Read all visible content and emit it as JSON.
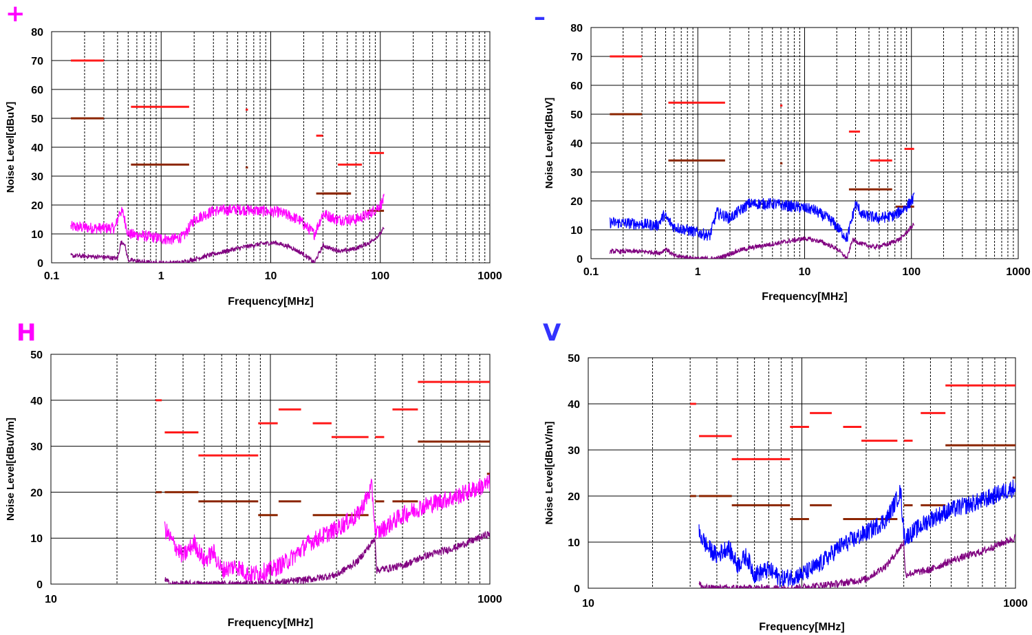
{
  "panel_labels": {
    "plus": "+",
    "minus": "–",
    "h": "H",
    "v": "V"
  },
  "colors": {
    "limit_qp": "#ff1a1a",
    "limit_av": "#8b2500",
    "trace_plus": "#ff00ff",
    "trace_minus": "#0000ff",
    "trace_lower": "#800080",
    "grid": "#000000"
  },
  "chart_data": [
    {
      "id": "plus",
      "type": "line",
      "title": "+",
      "xlabel": "Frequency[MHz]",
      "ylabel": "Noise Level[dBuV]",
      "xscale": "log",
      "xlim": [
        0.1,
        1000
      ],
      "ylim": [
        0,
        80
      ],
      "xticks": [
        "0.1",
        "1",
        "10",
        "100",
        "1000"
      ],
      "yticks": [
        "0",
        "10",
        "20",
        "30",
        "40",
        "50",
        "60",
        "70",
        "80"
      ],
      "limits_qp": [
        [
          0.15,
          0.3,
          70
        ],
        [
          0.53,
          1.8,
          54
        ],
        [
          5.9,
          6.2,
          53
        ],
        [
          26,
          30,
          44
        ],
        [
          41,
          68,
          34
        ],
        [
          80,
          108,
          38
        ]
      ],
      "limits_av": [
        [
          0.15,
          0.3,
          50
        ],
        [
          0.53,
          1.8,
          34
        ],
        [
          5.9,
          6.2,
          33
        ],
        [
          26,
          54,
          24
        ],
        [
          30,
          54,
          24
        ],
        [
          76,
          108,
          18
        ]
      ],
      "series": [
        {
          "name": "peak",
          "color": "#ff00ff",
          "x": [
            0.15,
            0.25,
            0.38,
            0.42,
            0.45,
            0.5,
            0.8,
            1.2,
            1.6,
            2.0,
            3.0,
            5.0,
            8.0,
            12,
            18,
            25,
            30,
            40,
            60,
            80,
            100,
            108
          ],
          "y": [
            12.5,
            12,
            12,
            18,
            17,
            10,
            9,
            8,
            9,
            15,
            18,
            18.5,
            18,
            17.5,
            15,
            10,
            17,
            15,
            15,
            17,
            20,
            22
          ]
        },
        {
          "name": "average",
          "color": "#800080",
          "x": [
            0.15,
            0.3,
            0.4,
            0.43,
            0.46,
            0.5,
            0.8,
            1.5,
            3,
            5,
            8,
            11,
            15,
            20,
            25,
            30,
            35,
            45,
            60,
            80,
            100,
            108
          ],
          "y": [
            2.5,
            2,
            1.5,
            7,
            7,
            1,
            0,
            0,
            3,
            5,
            6.5,
            7,
            5.5,
            3,
            0,
            6,
            5,
            4,
            5,
            7,
            10,
            12
          ]
        }
      ]
    },
    {
      "id": "minus",
      "type": "line",
      "title": "–",
      "xlabel": "Frequency[MHz]",
      "ylabel": "Noise Level[dBuV]",
      "xscale": "log",
      "xlim": [
        0.1,
        1000
      ],
      "ylim": [
        0,
        80
      ],
      "xticks": [
        "0.1",
        "1",
        "10",
        "100",
        "1000"
      ],
      "yticks": [
        "0",
        "10",
        "20",
        "30",
        "40",
        "50",
        "60",
        "70",
        "80"
      ],
      "limits_qp": [
        [
          0.15,
          0.3,
          70
        ],
        [
          0.53,
          1.8,
          54
        ],
        [
          5.9,
          6.2,
          53
        ],
        [
          26,
          33,
          44
        ],
        [
          41,
          66,
          34
        ],
        [
          86,
          106,
          38
        ]
      ],
      "limits_av": [
        [
          0.15,
          0.3,
          50
        ],
        [
          0.53,
          1.8,
          34
        ],
        [
          5.9,
          6.2,
          33
        ],
        [
          26,
          66,
          24
        ],
        [
          71,
          106,
          18
        ]
      ],
      "series": [
        {
          "name": "peak",
          "color": "#0000ff",
          "x": [
            0.15,
            0.3,
            0.42,
            0.48,
            0.6,
            1.0,
            1.3,
            1.5,
            2.0,
            3.0,
            5.0,
            8.0,
            12,
            18,
            25,
            30,
            35,
            50,
            70,
            90,
            106
          ],
          "y": [
            12.5,
            12,
            11.5,
            15,
            11,
            9,
            8,
            16,
            14,
            19,
            19,
            18,
            17,
            13,
            7,
            19,
            15,
            14,
            15,
            18,
            21
          ]
        },
        {
          "name": "average",
          "color": "#800080",
          "x": [
            0.15,
            0.3,
            0.45,
            0.5,
            0.6,
            1.0,
            1.5,
            2.5,
            4,
            7,
            10,
            14,
            20,
            25,
            28,
            35,
            45,
            60,
            80,
            106
          ],
          "y": [
            2.5,
            2.5,
            2,
            3.5,
            1,
            0,
            0,
            3,
            4.5,
            6,
            7,
            6,
            3.5,
            0,
            6.5,
            5,
            4,
            5,
            7,
            12
          ]
        }
      ]
    },
    {
      "id": "h",
      "type": "line",
      "title": "H",
      "xlabel": "Frequency[MHz]",
      "ylabel": "Noise Level[dBuV/m]",
      "xscale": "log",
      "xlim": [
        10,
        1000
      ],
      "ylim": [
        0,
        50
      ],
      "xticks": [
        "10",
        "1000"
      ],
      "yticks": [
        "0",
        "10",
        "20",
        "30",
        "40",
        "50"
      ],
      "limits_qp": [
        [
          30,
          32,
          40
        ],
        [
          33,
          47,
          33
        ],
        [
          47,
          88,
          28
        ],
        [
          88,
          108,
          35
        ],
        [
          109,
          138,
          38
        ],
        [
          156,
          190,
          35
        ],
        [
          190,
          280,
          32
        ],
        [
          300,
          330,
          32
        ],
        [
          360,
          470,
          38
        ],
        [
          470,
          1000,
          44
        ]
      ],
      "limits_av": [
        [
          30,
          32,
          20
        ],
        [
          33,
          47,
          20
        ],
        [
          47,
          88,
          18
        ],
        [
          88,
          108,
          15
        ],
        [
          109,
          138,
          18
        ],
        [
          156,
          280,
          15
        ],
        [
          300,
          330,
          18
        ],
        [
          360,
          470,
          18
        ],
        [
          470,
          1000,
          31
        ],
        [
          970,
          1000,
          24
        ]
      ],
      "series": [
        {
          "name": "peak",
          "color": "#ff00ff",
          "x": [
            33,
            36,
            40,
            45,
            50,
            55,
            60,
            70,
            80,
            90,
            100,
            120,
            150,
            200,
            250,
            290,
            300,
            305,
            400,
            500,
            700,
            1000
          ],
          "y": [
            12,
            9,
            6,
            9,
            5,
            7,
            3,
            4,
            2,
            2.5,
            3,
            5,
            9,
            12,
            15,
            21,
            12,
            11,
            15,
            17,
            19,
            22
          ]
        },
        {
          "name": "average",
          "color": "#800080",
          "x": [
            33,
            35,
            90,
            150,
            200,
            250,
            290,
            300,
            305,
            400,
            500,
            700,
            1000
          ],
          "y": [
            1,
            0,
            0,
            1,
            2,
            5,
            9,
            10,
            3,
            4,
            6,
            8,
            11
          ]
        }
      ]
    },
    {
      "id": "v",
      "type": "line",
      "title": "V",
      "xlabel": "Frequency[MHz]",
      "ylabel": "Noise Level[dBuV/m]",
      "xscale": "log",
      "xlim": [
        10,
        1000
      ],
      "ylim": [
        0,
        50
      ],
      "xticks": [
        "10",
        "1000"
      ],
      "yticks": [
        "0",
        "10",
        "20",
        "30",
        "40",
        "50"
      ],
      "limits_qp": [
        [
          30,
          32,
          40
        ],
        [
          33,
          47,
          33
        ],
        [
          47,
          88,
          28
        ],
        [
          88,
          108,
          35
        ],
        [
          109,
          138,
          38
        ],
        [
          156,
          190,
          35
        ],
        [
          190,
          280,
          32
        ],
        [
          300,
          330,
          32
        ],
        [
          360,
          470,
          38
        ],
        [
          470,
          1000,
          44
        ]
      ],
      "limits_av": [
        [
          30,
          32,
          20
        ],
        [
          33,
          47,
          20
        ],
        [
          47,
          88,
          18
        ],
        [
          88,
          108,
          15
        ],
        [
          109,
          138,
          18
        ],
        [
          156,
          280,
          15
        ],
        [
          300,
          330,
          18
        ],
        [
          360,
          470,
          18
        ],
        [
          470,
          1000,
          31
        ],
        [
          970,
          1000,
          24
        ]
      ],
      "series": [
        {
          "name": "peak",
          "color": "#0000ff",
          "x": [
            33,
            36,
            40,
            45,
            50,
            55,
            60,
            70,
            80,
            90,
            100,
            120,
            150,
            200,
            250,
            290,
            300,
            305,
            400,
            500,
            700,
            1000
          ],
          "y": [
            12,
            9,
            7,
            9,
            5,
            7,
            3,
            4,
            2,
            2.5,
            3,
            5,
            9,
            12,
            15,
            21,
            12,
            11,
            15,
            17,
            19,
            22
          ]
        },
        {
          "name": "average",
          "color": "#800080",
          "x": [
            33,
            35,
            90,
            150,
            200,
            250,
            290,
            300,
            305,
            400,
            500,
            700,
            1000
          ],
          "y": [
            1,
            0,
            0,
            1,
            2,
            5,
            9,
            10,
            3,
            4,
            6,
            8,
            11
          ]
        }
      ]
    }
  ]
}
